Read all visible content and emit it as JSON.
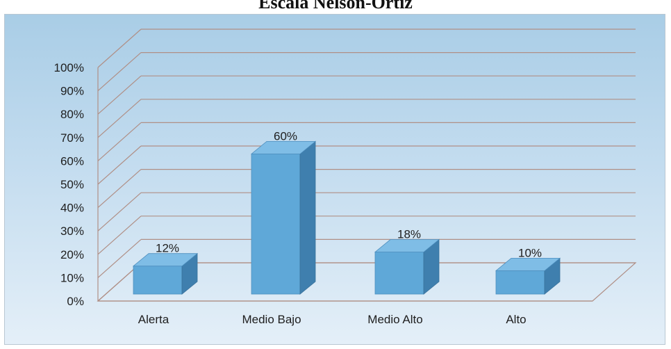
{
  "chart_data": {
    "type": "bar",
    "title": "Escala Nelson-Ortiz",
    "categories": [
      "Alerta",
      "Medio Bajo",
      "Medio Alto",
      "Alto"
    ],
    "values": [
      12,
      60,
      18,
      10
    ],
    "data_labels": [
      "12%",
      "60%",
      "18%",
      "10%"
    ],
    "ylim": [
      0,
      100
    ],
    "y_ticks": [
      "0%",
      "10%",
      "20%",
      "30%",
      "40%",
      "50%",
      "60%",
      "70%",
      "80%",
      "90%",
      "100%"
    ],
    "xlabel": "",
    "ylabel": "",
    "grid": true,
    "legend": "none",
    "style": "3d-column",
    "colors": {
      "bar_front": "#5fa8d8",
      "bar_top": "#7fbde6",
      "bar_side": "#3f7fae",
      "gridline": "#b08f86",
      "background_top": "#a9cde6",
      "background_bottom": "#e4eff8"
    }
  }
}
